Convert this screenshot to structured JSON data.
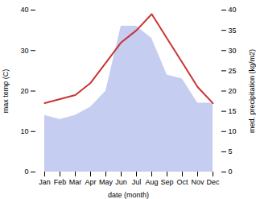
{
  "chart_data": {
    "type": "line",
    "xlabel": "date (month)",
    "ylabel": "max temp (C)",
    "y2label": "med. precipitation (kg/m2)",
    "categories": [
      "Jan",
      "Feb",
      "Mar",
      "Apr",
      "May",
      "Jun",
      "Jul",
      "Aug",
      "Sep",
      "Oct",
      "Nov",
      "Dec"
    ],
    "series": [
      {
        "type": "area",
        "axis": "y2",
        "color": "#c5cdf0",
        "values": [
          14,
          13,
          14,
          16,
          20,
          36,
          36,
          33,
          24,
          23,
          17,
          17
        ]
      },
      {
        "type": "line",
        "axis": "y",
        "color": "#cc3333",
        "values": [
          17,
          18,
          19,
          22,
          27,
          32,
          35,
          39,
          33,
          27,
          21,
          17
        ]
      }
    ],
    "ylim": [
      0,
      40
    ],
    "yticks": [
      0,
      10,
      20,
      30,
      40
    ],
    "y2lim": [
      0,
      40
    ],
    "y2ticks": [
      0,
      5,
      10,
      15,
      20,
      25,
      30,
      35,
      40
    ],
    "grid": false
  }
}
